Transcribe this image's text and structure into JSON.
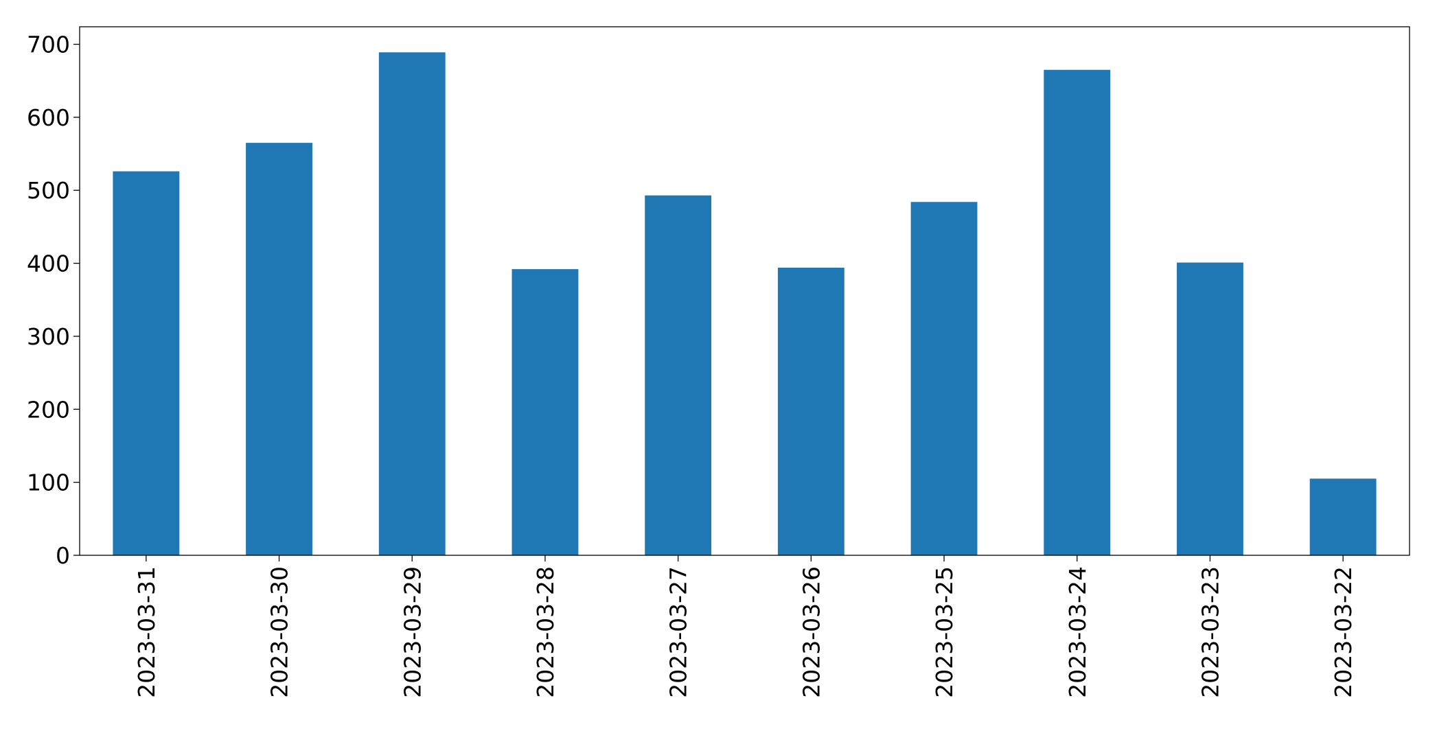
{
  "chart_data": {
    "type": "bar",
    "categories": [
      "2023-03-31",
      "2023-03-30",
      "2023-03-29",
      "2023-03-28",
      "2023-03-27",
      "2023-03-26",
      "2023-03-25",
      "2023-03-24",
      "2023-03-23",
      "2023-03-22"
    ],
    "values": [
      526,
      565,
      689,
      392,
      493,
      394,
      484,
      665,
      401,
      105
    ],
    "color": "#1f77b4",
    "ylim": [
      0,
      724
    ],
    "yticks": [
      0,
      100,
      200,
      300,
      400,
      500,
      600,
      700
    ],
    "grid": false
  }
}
